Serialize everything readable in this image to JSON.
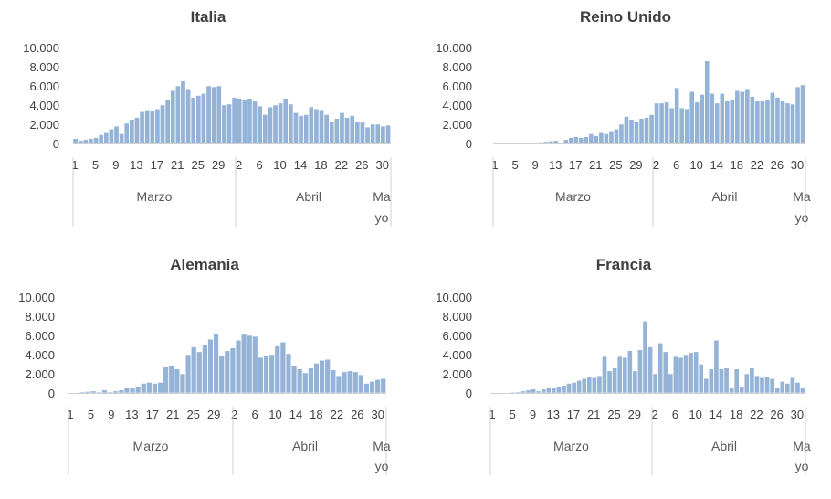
{
  "chart_data": [
    {
      "type": "bar",
      "title": "Italia",
      "y_ticks": [
        "10.000",
        "8.000",
        "6.000",
        "4.000",
        "2.000",
        "0"
      ],
      "ylim": [
        0,
        10000
      ],
      "x_ticks": [
        "1",
        "5",
        "9",
        "13",
        "17",
        "21",
        "25",
        "29",
        "2",
        "6",
        "10",
        "14",
        "18",
        "22",
        "26",
        "30"
      ],
      "months": [
        {
          "label": "Marzo"
        },
        {
          "label": "Abril"
        },
        {
          "label_line1": "Ma",
          "label_line2": "yo"
        }
      ],
      "values": [
        500,
        300,
        400,
        500,
        600,
        900,
        1200,
        1500,
        1800,
        1000,
        2100,
        2500,
        2700,
        3300,
        3500,
        3400,
        3600,
        4000,
        4600,
        5500,
        6000,
        6500,
        5700,
        4800,
        5000,
        5200,
        6000,
        5900,
        6000,
        4000,
        4100,
        4800,
        4700,
        4600,
        4700,
        4400,
        3900,
        3000,
        3800,
        4000,
        4200,
        4700,
        4100,
        3200,
        2900,
        3000,
        3800,
        3600,
        3500,
        3000,
        2300,
        2600,
        3200,
        2700,
        2900,
        2300,
        2200,
        1700,
        2000,
        2000,
        1800,
        1900
      ],
      "grid": false
    },
    {
      "type": "bar",
      "title": "Reino Unido",
      "y_ticks": [
        "10.000",
        "8.000",
        "6.000",
        "4.000",
        "2.000",
        "0"
      ],
      "ylim": [
        0,
        10000
      ],
      "x_ticks": [
        "1",
        "5",
        "9",
        "13",
        "17",
        "21",
        "25",
        "29",
        "2",
        "6",
        "10",
        "14",
        "18",
        "22",
        "26",
        "30"
      ],
      "months": [
        {
          "label": "Marzo"
        },
        {
          "label": "Abril"
        },
        {
          "label_line1": "Ma",
          "label_line2": "yo"
        }
      ],
      "values": [
        0,
        0,
        10,
        20,
        20,
        30,
        40,
        80,
        100,
        150,
        200,
        250,
        300,
        100,
        400,
        600,
        700,
        600,
        700,
        1000,
        800,
        1200,
        1000,
        1300,
        1500,
        2000,
        2800,
        2500,
        2300,
        2600,
        2700,
        3000,
        4200,
        4200,
        4300,
        3700,
        5800,
        3700,
        3600,
        5400,
        4300,
        5100,
        8600,
        5200,
        4200,
        5200,
        4500,
        4600,
        5500,
        5400,
        5700,
        4900,
        4400,
        4500,
        4600,
        5300,
        4800,
        4400,
        4200,
        4100,
        5900,
        6100
      ],
      "grid": false
    },
    {
      "type": "bar",
      "title": "Alemania",
      "y_ticks": [
        "10.000",
        "8.000",
        "6.000",
        "4.000",
        "2.000",
        "0"
      ],
      "ylim": [
        0,
        10000
      ],
      "x_ticks": [
        "1",
        "5",
        "9",
        "13",
        "17",
        "21",
        "25",
        "29",
        "2",
        "6",
        "10",
        "14",
        "18",
        "22",
        "26",
        "30"
      ],
      "months": [
        {
          "label": "Marzo"
        },
        {
          "label": "Abril"
        },
        {
          "label_line1": "Ma",
          "label_line2": "yo"
        }
      ],
      "values": [
        0,
        50,
        100,
        150,
        200,
        100,
        300,
        100,
        200,
        300,
        600,
        500,
        700,
        1000,
        1100,
        1000,
        1100,
        2700,
        2800,
        2500,
        2000,
        4000,
        4800,
        4300,
        5000,
        5600,
        6200,
        3900,
        4400,
        4700,
        5500,
        6100,
        6000,
        5900,
        3700,
        3900,
        4000,
        4900,
        5300,
        4100,
        2800,
        2500,
        2100,
        2600,
        3100,
        3400,
        3500,
        2400,
        1800,
        2200,
        2300,
        2200,
        1900,
        1000,
        1200,
        1400,
        1500
      ],
      "grid": false
    },
    {
      "type": "bar",
      "title": "Francia",
      "y_ticks": [
        "10.000",
        "8.000",
        "6.000",
        "4.000",
        "2.000",
        "0"
      ],
      "ylim": [
        0,
        10000
      ],
      "x_ticks": [
        "1",
        "5",
        "9",
        "13",
        "17",
        "21",
        "25",
        "29",
        "2",
        "6",
        "10",
        "14",
        "18",
        "22",
        "26",
        "30"
      ],
      "months": [
        {
          "label": "Marzo"
        },
        {
          "label": "Abril"
        },
        {
          "label_line1": "Ma",
          "label_line2": "yo"
        }
      ],
      "values": [
        10,
        20,
        30,
        50,
        80,
        100,
        200,
        300,
        400,
        200,
        400,
        500,
        600,
        700,
        800,
        1000,
        1100,
        1300,
        1500,
        1700,
        1600,
        1800,
        3800,
        2300,
        2600,
        3800,
        3700,
        4400,
        2300,
        4500,
        7500,
        4800,
        2000,
        5200,
        4300,
        2000,
        3800,
        3700,
        4000,
        4200,
        4300,
        3000,
        1500,
        2500,
        5500,
        2500,
        2600,
        500,
        2500,
        700,
        2000,
        2600,
        1800,
        1600,
        1700,
        1500,
        500,
        1200,
        1000,
        1600,
        1100,
        500
      ],
      "grid": false
    }
  ]
}
